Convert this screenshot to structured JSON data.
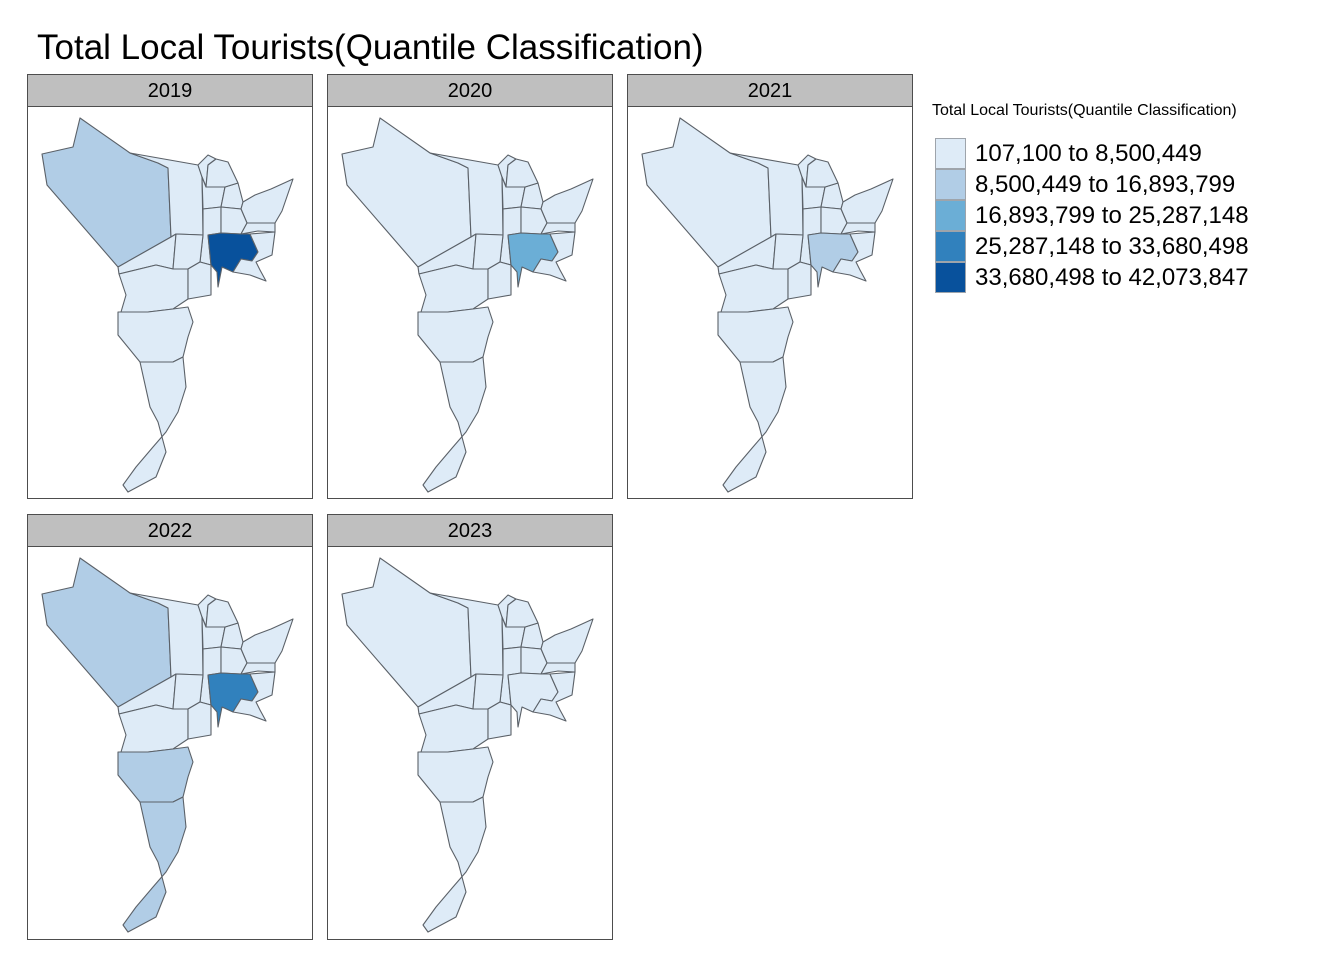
{
  "title": "Total Local Tourists(Quantile Classification)",
  "legend": {
    "title": "Total Local Tourists(Quantile Classification)",
    "items": [
      {
        "label": "107,100 to 8,500,449",
        "color": "#deebf7"
      },
      {
        "label": "8,500,449 to 16,893,799",
        "color": "#b1cde6"
      },
      {
        "label": "16,893,799 to 25,287,148",
        "color": "#6baed6"
      },
      {
        "label": "25,287,148 to 33,680,498",
        "color": "#3181bd"
      },
      {
        "label": "33,680,498 to 42,073,847",
        "color": "#08519c"
      }
    ]
  },
  "panels": [
    {
      "year": "2019",
      "classes": {
        "nw": 1,
        "center": 4
      }
    },
    {
      "year": "2020",
      "classes": {
        "center": 2
      }
    },
    {
      "year": "2021",
      "classes": {
        "center": 1
      }
    },
    {
      "year": "2022",
      "classes": {
        "nw": 1,
        "center": 3,
        "s1": 1,
        "s2": 1
      }
    },
    {
      "year": "2023",
      "classes": {}
    }
  ]
}
